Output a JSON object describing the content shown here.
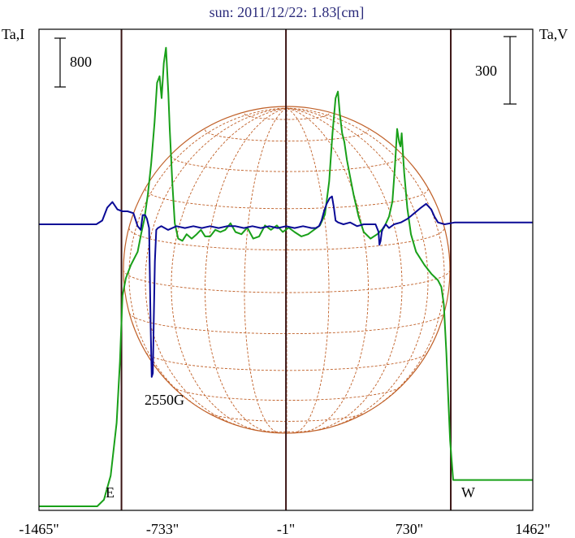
{
  "chart_data": {
    "type": "line",
    "title": "sun: 2011/12/22: 1.83[cm]",
    "left_axis_label": "Ta,I",
    "right_axis_label": "Ta,V",
    "left_scale_bar": "800",
    "right_scale_bar": "300",
    "x_ticks": [
      {
        "value": -1465,
        "label": "-1465\""
      },
      {
        "value": -733,
        "label": "-733\""
      },
      {
        "value": -1,
        "label": "-1\""
      },
      {
        "value": 730,
        "label": "730\""
      },
      {
        "value": 1462,
        "label": "1462\""
      }
    ],
    "xlim": [
      -1465,
      1462
    ],
    "limb_lines": [
      -976,
      -1,
      976
    ],
    "limb_labels": {
      "east": "E",
      "west": "W"
    },
    "annotation": {
      "text": "2550G",
      "x": -700
    },
    "colors": {
      "stokes_i": "#19a019",
      "stokes_v": "#0a0a96",
      "disk": "#c06028",
      "limb": "#3a1414",
      "frame": "#000000",
      "title": "#2a2a7a"
    },
    "series": [
      {
        "key": "stokes_i",
        "points": [
          [
            -1465,
            0.0
          ],
          [
            -1120,
            0.0
          ],
          [
            -1080,
            0.03
          ],
          [
            -1040,
            0.14
          ],
          [
            -1005,
            0.38
          ],
          [
            -985,
            0.66
          ],
          [
            -970,
            0.96
          ],
          [
            -950,
            1.04
          ],
          [
            -920,
            1.1
          ],
          [
            -880,
            1.16
          ],
          [
            -860,
            1.24
          ],
          [
            -840,
            1.31
          ],
          [
            -820,
            1.42
          ],
          [
            -800,
            1.56
          ],
          [
            -780,
            1.75
          ],
          [
            -765,
            1.93
          ],
          [
            -750,
            1.96
          ],
          [
            -738,
            1.86
          ],
          [
            -725,
            2.02
          ],
          [
            -712,
            2.09
          ],
          [
            -698,
            1.88
          ],
          [
            -690,
            1.72
          ],
          [
            -675,
            1.48
          ],
          [
            -660,
            1.29
          ],
          [
            -640,
            1.22
          ],
          [
            -615,
            1.21
          ],
          [
            -590,
            1.24
          ],
          [
            -560,
            1.22
          ],
          [
            -530,
            1.24
          ],
          [
            -505,
            1.26
          ],
          [
            -480,
            1.23
          ],
          [
            -450,
            1.23
          ],
          [
            -420,
            1.26
          ],
          [
            -390,
            1.25
          ],
          [
            -360,
            1.26
          ],
          [
            -330,
            1.29
          ],
          [
            -300,
            1.25
          ],
          [
            -265,
            1.24
          ],
          [
            -230,
            1.27
          ],
          [
            -195,
            1.22
          ],
          [
            -160,
            1.23
          ],
          [
            -125,
            1.28
          ],
          [
            -90,
            1.26
          ],
          [
            -55,
            1.28
          ],
          [
            -20,
            1.25
          ],
          [
            15,
            1.27
          ],
          [
            50,
            1.25
          ],
          [
            90,
            1.23
          ],
          [
            130,
            1.24
          ],
          [
            165,
            1.26
          ],
          [
            200,
            1.28
          ],
          [
            230,
            1.33
          ],
          [
            255,
            1.48
          ],
          [
            275,
            1.7
          ],
          [
            293,
            1.86
          ],
          [
            307,
            1.89
          ],
          [
            318,
            1.79
          ],
          [
            332,
            1.7
          ],
          [
            345,
            1.66
          ],
          [
            360,
            1.58
          ],
          [
            380,
            1.5
          ],
          [
            400,
            1.42
          ],
          [
            430,
            1.32
          ],
          [
            460,
            1.25
          ],
          [
            500,
            1.22
          ],
          [
            540,
            1.24
          ],
          [
            580,
            1.27
          ],
          [
            610,
            1.32
          ],
          [
            630,
            1.39
          ],
          [
            645,
            1.55
          ],
          [
            658,
            1.72
          ],
          [
            670,
            1.66
          ],
          [
            678,
            1.64
          ],
          [
            685,
            1.7
          ],
          [
            700,
            1.52
          ],
          [
            718,
            1.36
          ],
          [
            740,
            1.24
          ],
          [
            770,
            1.16
          ],
          [
            820,
            1.1
          ],
          [
            860,
            1.06
          ],
          [
            900,
            1.03
          ],
          [
            920,
            1.0
          ],
          [
            935,
            0.92
          ],
          [
            950,
            0.7
          ],
          [
            962,
            0.48
          ],
          [
            972,
            0.3
          ],
          [
            990,
            0.12
          ],
          [
            1010,
            0.12
          ],
          [
            1462,
            0.12
          ]
        ]
      },
      {
        "key": "stokes_v",
        "points": [
          [
            -1465,
            0.0
          ],
          [
            -1125,
            0.0
          ],
          [
            -1090,
            0.02
          ],
          [
            -1060,
            0.09
          ],
          [
            -1030,
            0.12
          ],
          [
            -1000,
            0.08
          ],
          [
            -970,
            0.07
          ],
          [
            -940,
            0.07
          ],
          [
            -905,
            0.06
          ],
          [
            -880,
            -0.01
          ],
          [
            -862,
            -0.03
          ],
          [
            -850,
            0.05
          ],
          [
            -836,
            0.05
          ],
          [
            -825,
            0.03
          ],
          [
            -812,
            -0.02
          ],
          [
            -803,
            -0.55
          ],
          [
            -797,
            -0.82
          ],
          [
            -790,
            -0.8
          ],
          [
            -785,
            -0.52
          ],
          [
            -778,
            -0.2
          ],
          [
            -770,
            -0.03
          ],
          [
            -760,
            -0.02
          ],
          [
            -740,
            -0.01
          ],
          [
            -700,
            -0.03
          ],
          [
            -650,
            -0.01
          ],
          [
            -600,
            -0.02
          ],
          [
            -550,
            -0.01
          ],
          [
            -500,
            -0.02
          ],
          [
            -450,
            -0.01
          ],
          [
            -400,
            -0.02
          ],
          [
            -350,
            -0.01
          ],
          [
            -300,
            -0.01
          ],
          [
            -250,
            -0.02
          ],
          [
            -200,
            -0.01
          ],
          [
            -150,
            -0.02
          ],
          [
            -100,
            -0.01
          ],
          [
            -50,
            -0.02
          ],
          [
            0,
            -0.01
          ],
          [
            50,
            -0.02
          ],
          [
            100,
            -0.01
          ],
          [
            150,
            -0.02
          ],
          [
            175,
            -0.02
          ],
          [
            195,
            -0.01
          ],
          [
            210,
            0.02
          ],
          [
            225,
            0.07
          ],
          [
            240,
            0.11
          ],
          [
            258,
            0.14
          ],
          [
            272,
            0.15
          ],
          [
            283,
            0.09
          ],
          [
            293,
            0.02
          ],
          [
            308,
            0.01
          ],
          [
            340,
            0.0
          ],
          [
            380,
            0.01
          ],
          [
            420,
            -0.01
          ],
          [
            460,
            0.0
          ],
          [
            500,
            0.0
          ],
          [
            530,
            0.0
          ],
          [
            548,
            -0.04
          ],
          [
            553,
            -0.11
          ],
          [
            560,
            -0.09
          ],
          [
            567,
            -0.04
          ],
          [
            575,
            -0.02
          ],
          [
            590,
            0.0
          ],
          [
            610,
            -0.02
          ],
          [
            640,
            0.0
          ],
          [
            680,
            0.01
          ],
          [
            720,
            0.03
          ],
          [
            760,
            0.06
          ],
          [
            800,
            0.09
          ],
          [
            830,
            0.11
          ],
          [
            860,
            0.08
          ],
          [
            880,
            0.04
          ],
          [
            900,
            0.01
          ],
          [
            940,
            0.0
          ],
          [
            1000,
            0.01
          ],
          [
            1462,
            0.01
          ]
        ]
      }
    ]
  }
}
